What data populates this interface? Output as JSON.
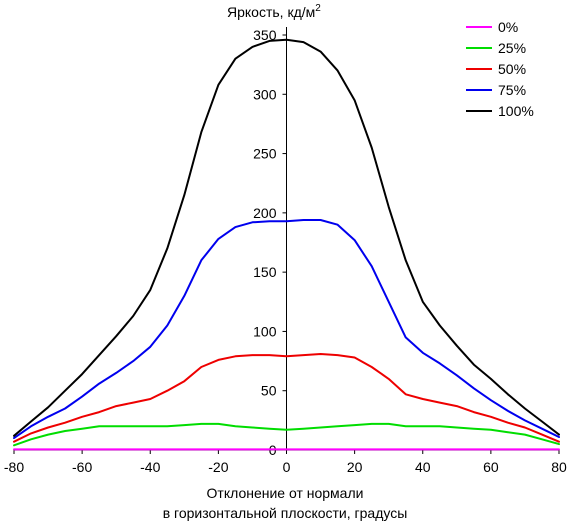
{
  "chart_data": {
    "type": "line",
    "title": "Яркость, кд/м",
    "title_sup": "2",
    "xlabel_line1": "Отклонение от нормали",
    "xlabel_line2": "в горизонтальной плоскости, градусы",
    "xlim": [
      -80,
      80
    ],
    "ylim": [
      0,
      350
    ],
    "xticks": [
      -80,
      -60,
      -40,
      -20,
      0,
      20,
      40,
      60,
      80
    ],
    "yticks": [
      50,
      100,
      150,
      200,
      250,
      300,
      350
    ],
    "ytick_zero": "0",
    "grid": false,
    "legend_position": "top-right",
    "x": [
      -80,
      -75,
      -70,
      -65,
      -60,
      -55,
      -50,
      -45,
      -40,
      -35,
      -30,
      -25,
      -20,
      -15,
      -10,
      -5,
      0,
      5,
      10,
      15,
      20,
      25,
      30,
      35,
      40,
      45,
      50,
      55,
      60,
      65,
      70,
      75,
      80
    ],
    "series": [
      {
        "name": "0%",
        "color": "#ff00ff",
        "values": [
          0.5,
          0.5,
          0.5,
          0.5,
          0.5,
          0.5,
          0.5,
          0.5,
          0.5,
          0.5,
          0.5,
          0.5,
          0.5,
          0.5,
          0.5,
          0.5,
          0.5,
          0.5,
          0.5,
          0.5,
          0.5,
          0.5,
          0.5,
          0.5,
          0.5,
          0.5,
          0.5,
          0.5,
          0.5,
          0.5,
          0.5,
          0.5,
          0.5
        ]
      },
      {
        "name": "25%",
        "color": "#00dd00",
        "values": [
          4,
          9,
          13,
          16,
          18,
          20,
          20,
          20,
          20,
          20,
          21,
          22,
          22,
          20,
          19,
          18,
          17,
          18,
          19,
          20,
          21,
          22,
          22,
          20,
          20,
          20,
          19,
          18,
          17,
          15,
          13,
          9,
          5
        ]
      },
      {
        "name": "50%",
        "color": "#ee0000",
        "values": [
          7,
          14,
          19,
          23,
          28,
          32,
          37,
          40,
          43,
          50,
          58,
          70,
          76,
          79,
          80,
          80,
          79,
          80,
          81,
          80,
          78,
          70,
          60,
          47,
          43,
          40,
          37,
          32,
          28,
          23,
          19,
          13,
          7
        ]
      },
      {
        "name": "75%",
        "color": "#0000ee",
        "values": [
          10,
          20,
          28,
          35,
          45,
          56,
          65,
          75,
          87,
          105,
          130,
          160,
          178,
          188,
          192,
          193,
          193,
          194,
          194,
          190,
          177,
          155,
          125,
          95,
          82,
          73,
          63,
          52,
          42,
          33,
          25,
          18,
          11
        ]
      },
      {
        "name": "100%",
        "color": "#000000",
        "values": [
          12,
          24,
          36,
          50,
          64,
          80,
          96,
          113,
          135,
          170,
          215,
          268,
          308,
          330,
          340,
          345,
          346,
          344,
          336,
          320,
          295,
          255,
          205,
          160,
          125,
          105,
          88,
          72,
          60,
          47,
          35,
          24,
          13
        ]
      }
    ]
  }
}
